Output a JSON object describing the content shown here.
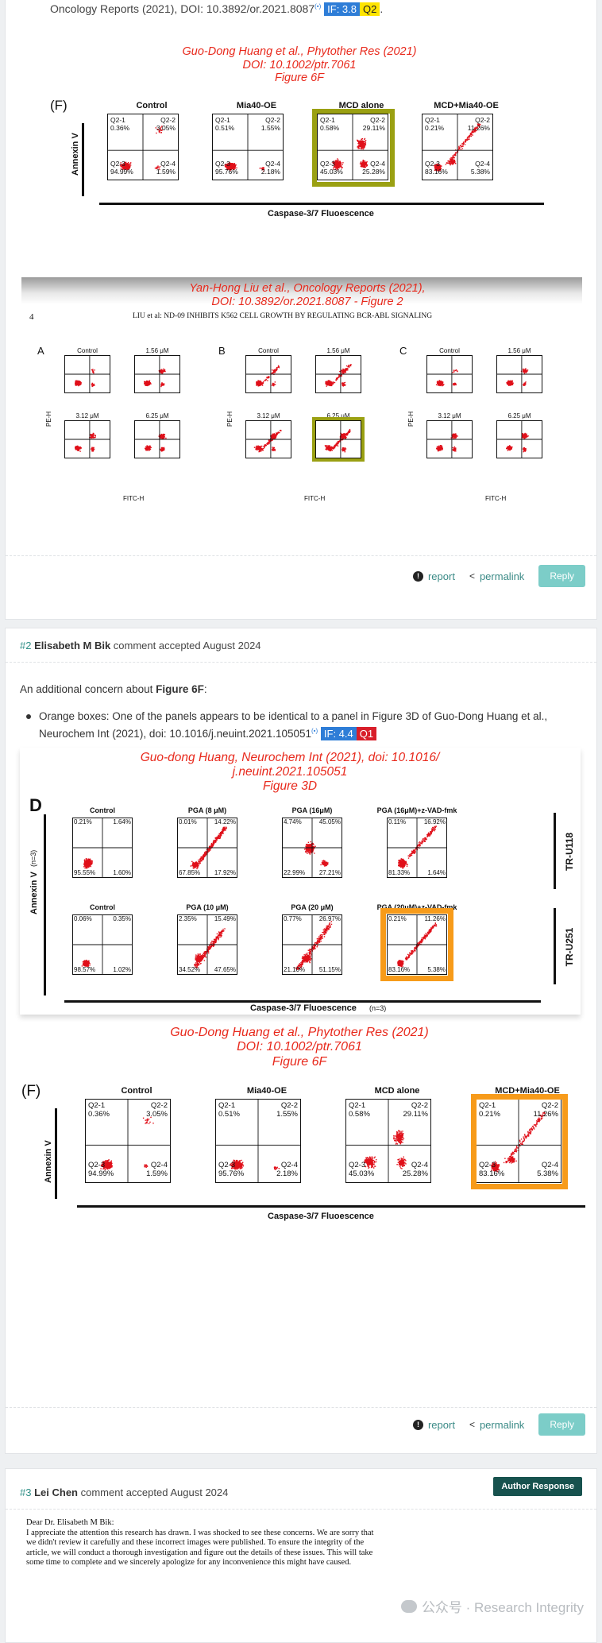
{
  "top": {
    "ref_text": "Oncology Reports (2021), DOI: 10.3892/or.2021.8087",
    "ref_suffix": "(•)",
    "if_badge": "IF: 3.8",
    "q_badge": "Q2",
    "trail": "."
  },
  "captions": {
    "huang_ptr_1": [
      "Guo-Dong Huang et al., Phytother Res (2021)",
      "DOI: 10.1002/ptr.7061",
      "Figure 6F"
    ],
    "liu_or": [
      "Yan-Hong Liu et al., Oncology Reports (2021),",
      "DOI: 10.3892/or.2021.8087 - Figure 2"
    ],
    "huang_neuro": [
      "Guo-dong Huang, Neurochem Int (2021), doi: 10.1016/",
      "j.neuint.2021.105051",
      "Figure 3D"
    ],
    "huang_ptr_2": [
      "Guo-Dong Huang et al., Phytother Res (2021)",
      "DOI: 10.1002/ptr.7061",
      "Figure 6F"
    ]
  },
  "fig6f": {
    "letter": "(F)",
    "y_label": "Annexin V",
    "x_label": "Caspase-3/7  Fluoescence",
    "panels": [
      {
        "title": "Control",
        "q1": "Q2-1",
        "q1v": "0.36%",
        "q2": "Q2-2",
        "q2v": "3.05%",
        "q3": "Q2-3",
        "q3v": "94.99%",
        "q4": "Q2-4",
        "q4v": "1.59%"
      },
      {
        "title": "Mia40-OE",
        "q1": "Q2-1",
        "q1v": "0.51%",
        "q2": "Q2-2",
        "q2v": "1.55%",
        "q3": "Q2-3",
        "q3v": "95.76%",
        "q4": "Q2-4",
        "q4v": "2.18%"
      },
      {
        "title": "MCD alone",
        "q1": "Q2-1",
        "q1v": "0.58%",
        "q2": "Q2-2",
        "q2v": "29.11%",
        "q3": "Q2-3",
        "q3v": "45.03%",
        "q4": "Q2-4",
        "q4v": "25.28%"
      },
      {
        "title": "MCD+Mia40-OE",
        "q1": "Q2-1",
        "q1v": "0.21%",
        "q2": "Q2-2",
        "q2v": "11.26%",
        "q3": "Q2-3",
        "q3v": "83.16%",
        "q4": "Q2-4",
        "q4v": "5.38%"
      }
    ]
  },
  "liu": {
    "page": "4",
    "header": "LIU et al:  ND-09 INHIBITS K562 CELL GROWTH BY REGULATING BCR-ABL SIGNALING",
    "groups": [
      "A",
      "B",
      "C"
    ],
    "panel_titles": [
      "Control",
      "1.56 μM",
      "3.12 μM",
      "6.25 μM"
    ],
    "y_label": "PE-H",
    "x_label": "FITC-H"
  },
  "comment1_footer": {
    "report": "report",
    "permalink": "permalink",
    "reply": "Reply"
  },
  "comment2": {
    "num": "#2",
    "author": "Elisabeth M Bik",
    "status": "comment accepted August 2024",
    "intro_pre": "An additional concern about ",
    "intro_bold": "Figure 6F",
    "intro_post": ":",
    "bullet_line1": "Orange boxes: One of the panels appears to be identical to a panel in Figure 3D of Guo-Dong Huang et al.,",
    "bullet_line2": "Neurochem Int (2021), doi: 10.1016/j.neuint.2021.105051",
    "bullet_suffix": "(•)",
    "if_badge": "IF: 4.4",
    "q_badge": "Q1"
  },
  "fig3d": {
    "letter": "D",
    "y_label": "Annexin V",
    "y_label_n": "(n=3)",
    "x_label": "Caspase-3/7 Fluoescence",
    "x_label_n": "(n=3)",
    "row_labels": [
      "TR-U118",
      "TR-U251"
    ],
    "panels": [
      {
        "title": "Control",
        "tl": "0.21%",
        "tr": "1.64%",
        "bl": "95.55%",
        "br": "1.60%"
      },
      {
        "title": "PGA  (8 μM)",
        "tl": "0.01%",
        "tr": "14.22%",
        "bl": "67.85%",
        "br": "17.92%"
      },
      {
        "title": "PGA  (16μM)",
        "tl": "4.74%",
        "tr": "45.05%",
        "bl": "22.99%",
        "br": "27.21%"
      },
      {
        "title": "PGA  (16μM)+z-VAD-fmk",
        "tl": "0.11%",
        "tr": "16.92%",
        "bl": "81.33%",
        "br": "1.64%"
      },
      {
        "title": "Control",
        "tl": "0.06%",
        "tr": "0.35%",
        "bl": "98.57%",
        "br": "1.02%"
      },
      {
        "title": "PGA  (10 μM)",
        "tl": "2.35%",
        "tr": "15.49%",
        "bl": "34.52%",
        "br": "47.65%"
      },
      {
        "title": "PGA  (20 μM)",
        "tl": "0.77%",
        "tr": "26.97%",
        "bl": "21.10%",
        "br": "51.15%"
      },
      {
        "title": "PGA  (20μM)+z-VAD-fmk",
        "tl": "0.21%",
        "tr": "11.26%",
        "bl": "83.16%",
        "br": "5.38%"
      }
    ]
  },
  "comment2_footer": {
    "report": "report",
    "permalink": "permalink",
    "reply": "Reply"
  },
  "comment3": {
    "num": "#3",
    "author": "Lei Chen",
    "status": "comment accepted August 2024",
    "author_response": "Author Response",
    "letter_lines": [
      "Dear Dr. Elisabeth M Bik:",
      "I appreciate the attention this research has drawn. I was shocked to see these concerns. We are sorry that",
      "we didn't review it carefully and these incorrect images were published. To ensure the integrity of the",
      "article, we will conduct a thorough investigation and figure out the details of these issues. This will take",
      "some time to complete and we sincerely apologize for any inconvenience this might have caused."
    ],
    "watermark": "公众号 · Research Integrity"
  },
  "colors": {
    "caption_red": "#e8291c",
    "olive_box": "#9aa012",
    "orange_box": "#f79b1a",
    "reply_btn": "#7ccdc8",
    "accent": "#2f8f87"
  }
}
